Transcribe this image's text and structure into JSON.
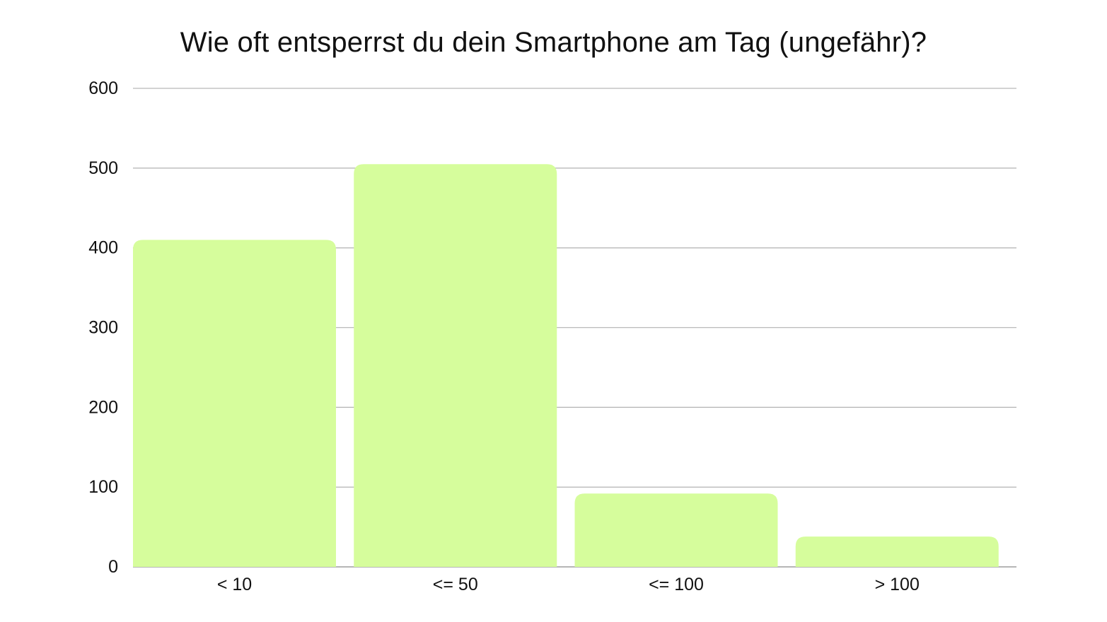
{
  "chart_data": {
    "type": "bar",
    "title": "Wie oft entsperrst du dein Smartphone am Tag (ungefähr)?",
    "categories": [
      "< 10",
      "<= 50",
      "<= 100",
      "> 100"
    ],
    "values": [
      410,
      505,
      92,
      38
    ],
    "ylim": [
      0,
      600
    ],
    "yticks": [
      0,
      100,
      200,
      300,
      400,
      500,
      600
    ],
    "xlabel": "",
    "ylabel": "",
    "grid": true,
    "legend": "none",
    "bar_color": "#d6fd9c",
    "grid_color": "#b9b9b9"
  }
}
